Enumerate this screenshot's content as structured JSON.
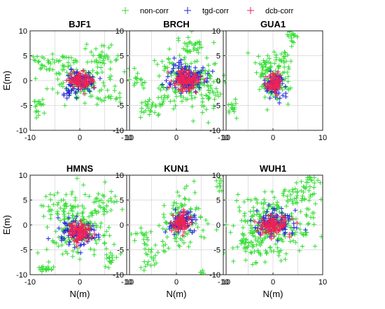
{
  "legend": [
    {
      "name": "non-corr",
      "color": "#33dd33"
    },
    {
      "name": "tgd-corr",
      "color": "#2222dd"
    },
    {
      "name": "dcb-corr",
      "color": "#ee2255"
    }
  ],
  "chart_data": [
    {
      "type": "scatter",
      "title": "BJF1",
      "xlabel": "",
      "ylabel": "E(m)",
      "xlim": [
        -10,
        10
      ],
      "ylim": [
        -10,
        10
      ],
      "xticks": [
        "-10",
        "0",
        "10"
      ],
      "yticks": [
        "-10",
        "-5",
        "0",
        "5",
        "10"
      ],
      "grid": true,
      "series": [
        {
          "name": "non-corr",
          "color": "#33dd33",
          "clusters": [
            {
              "cx": 0,
              "cy": 0,
              "sx": 2.5,
              "sy": 1.8,
              "n": 110
            },
            {
              "cx": 5,
              "cy": 4,
              "sx": 1.8,
              "sy": 1.8,
              "n": 45
            },
            {
              "cx": -8,
              "cy": 3.5,
              "sx": 1.5,
              "sy": 1.0,
              "n": 25
            },
            {
              "cx": -8.5,
              "cy": -5.5,
              "sx": 1.0,
              "sy": 1.0,
              "n": 20
            },
            {
              "cx": -3,
              "cy": 4,
              "sx": 1.5,
              "sy": 0.8,
              "n": 20
            },
            {
              "cx": 6,
              "cy": -3.5,
              "sx": 1.5,
              "sy": 0.8,
              "n": 20
            }
          ]
        },
        {
          "name": "tgd-corr",
          "color": "#2222dd",
          "clusters": [
            {
              "cx": 0,
              "cy": 0,
              "sx": 1.5,
              "sy": 1.0,
              "n": 70
            },
            {
              "cx": -2,
              "cy": -2,
              "sx": 0.8,
              "sy": 0.8,
              "n": 20
            }
          ]
        },
        {
          "name": "dcb-corr",
          "color": "#ee2255",
          "clusters": [
            {
              "cx": 0,
              "cy": 0,
              "sx": 1.2,
              "sy": 0.8,
              "n": 90
            }
          ]
        }
      ]
    },
    {
      "type": "scatter",
      "title": "BRCH",
      "xlabel": "",
      "ylabel": "",
      "xlim": [
        -10,
        10
      ],
      "ylim": [
        -10,
        10
      ],
      "xticks": [
        "-10",
        "0",
        "10"
      ],
      "yticks": [
        "-10",
        "-5",
        "0",
        "5",
        "10"
      ],
      "grid": true,
      "series": [
        {
          "name": "non-corr",
          "color": "#33dd33",
          "clusters": [
            {
              "cx": 2,
              "cy": 0.5,
              "sx": 3.0,
              "sy": 2.8,
              "n": 180
            },
            {
              "cx": -5,
              "cy": -5,
              "sx": 1.5,
              "sy": 1.2,
              "n": 30
            },
            {
              "cx": 7,
              "cy": -3,
              "sx": 1.5,
              "sy": 1.5,
              "n": 25
            },
            {
              "cx": 3,
              "cy": 7,
              "sx": 1.5,
              "sy": 1.0,
              "n": 25
            },
            {
              "cx": -8,
              "cy": 0,
              "sx": 1.2,
              "sy": 0.8,
              "n": 15
            }
          ]
        },
        {
          "name": "tgd-corr",
          "color": "#2222dd",
          "clusters": [
            {
              "cx": 2,
              "cy": 0.5,
              "sx": 1.8,
              "sy": 1.6,
              "n": 110
            }
          ]
        },
        {
          "name": "dcb-corr",
          "color": "#ee2255",
          "clusters": [
            {
              "cx": 2,
              "cy": 0,
              "sx": 1.3,
              "sy": 1.2,
              "n": 110
            }
          ]
        }
      ]
    },
    {
      "type": "scatter",
      "title": "GUA1",
      "xlabel": "",
      "ylabel": "",
      "xlim": [
        -10,
        10
      ],
      "ylim": [
        -10,
        10
      ],
      "xticks": [
        "-10",
        "0",
        "10"
      ],
      "yticks": [
        "-10",
        "-5",
        "0",
        "5",
        "10"
      ],
      "grid": true,
      "series": [
        {
          "name": "non-corr",
          "color": "#33dd33",
          "clusters": [
            {
              "cx": 0,
              "cy": 0.5,
              "sx": 1.8,
              "sy": 2.2,
              "n": 90
            },
            {
              "cx": 4,
              "cy": 9,
              "sx": 0.5,
              "sy": 0.8,
              "n": 20
            },
            {
              "cx": -8,
              "cy": -5.5,
              "sx": 0.5,
              "sy": 1.0,
              "n": 15
            },
            {
              "cx": 2,
              "cy": 4,
              "sx": 1.2,
              "sy": 1.0,
              "n": 20
            },
            {
              "cx": -2,
              "cy": 2.5,
              "sx": 1.0,
              "sy": 0.8,
              "n": 15
            }
          ]
        },
        {
          "name": "tgd-corr",
          "color": "#2222dd",
          "clusters": [
            {
              "cx": 0.5,
              "cy": -1,
              "sx": 1.0,
              "sy": 1.2,
              "n": 60
            }
          ]
        },
        {
          "name": "dcb-corr",
          "color": "#ee2255",
          "clusters": [
            {
              "cx": 0.3,
              "cy": -0.5,
              "sx": 0.8,
              "sy": 1.0,
              "n": 70
            }
          ]
        }
      ]
    },
    {
      "type": "scatter",
      "title": "HMNS",
      "xlabel": "N(m)",
      "ylabel": "E(m)",
      "xlim": [
        -10,
        10
      ],
      "ylim": [
        -10,
        10
      ],
      "xticks": [
        "-10",
        "0",
        "10"
      ],
      "yticks": [
        "-10",
        "-5",
        "0",
        "5",
        "10"
      ],
      "grid": true,
      "series": [
        {
          "name": "non-corr",
          "color": "#33dd33",
          "clusters": [
            {
              "cx": 0,
              "cy": 0,
              "sx": 3.2,
              "sy": 2.8,
              "n": 170
            },
            {
              "cx": -7,
              "cy": -9,
              "sx": 1.0,
              "sy": 0.8,
              "n": 20
            },
            {
              "cx": 6,
              "cy": -7,
              "sx": 0.8,
              "sy": 0.6,
              "n": 15
            },
            {
              "cx": -5,
              "cy": 4,
              "sx": 1.5,
              "sy": 1.2,
              "n": 30
            },
            {
              "cx": 5,
              "cy": 5,
              "sx": 1.5,
              "sy": 1.2,
              "n": 25
            }
          ]
        },
        {
          "name": "tgd-corr",
          "color": "#2222dd",
          "clusters": [
            {
              "cx": -1,
              "cy": -1.5,
              "sx": 1.8,
              "sy": 1.3,
              "n": 90
            }
          ]
        },
        {
          "name": "dcb-corr",
          "color": "#ee2255",
          "clusters": [
            {
              "cx": 0,
              "cy": -1.5,
              "sx": 1.2,
              "sy": 1.0,
              "n": 100
            }
          ]
        }
      ]
    },
    {
      "type": "scatter",
      "title": "KUN1",
      "xlabel": "N(m)",
      "ylabel": "",
      "xlim": [
        -10,
        10
      ],
      "ylim": [
        -10,
        10
      ],
      "xticks": [
        "-10",
        "0",
        "10"
      ],
      "yticks": [
        "-10",
        "-5",
        "0",
        "5",
        "10"
      ],
      "grid": true,
      "series": [
        {
          "name": "non-corr",
          "color": "#33dd33",
          "clusters": [
            {
              "cx": 1,
              "cy": 0.5,
              "sx": 2.0,
              "sy": 2.5,
              "n": 110
            },
            {
              "cx": -5,
              "cy": -6,
              "sx": 1.5,
              "sy": 1.2,
              "n": 25
            },
            {
              "cx": 9,
              "cy": 8,
              "sx": 0.4,
              "sy": 0.8,
              "n": 10
            },
            {
              "cx": 5,
              "cy": -9.5,
              "sx": 0.4,
              "sy": 0.3,
              "n": 5
            },
            {
              "cx": -7,
              "cy": -2,
              "sx": 1.0,
              "sy": 1.0,
              "n": 15
            }
          ]
        },
        {
          "name": "tgd-corr",
          "color": "#2222dd",
          "clusters": [
            {
              "cx": 1,
              "cy": 0.5,
              "sx": 1.5,
              "sy": 1.0,
              "n": 70
            }
          ]
        },
        {
          "name": "dcb-corr",
          "color": "#ee2255",
          "clusters": [
            {
              "cx": 1,
              "cy": 0.5,
              "sx": 1.0,
              "sy": 0.9,
              "n": 80
            }
          ]
        }
      ]
    },
    {
      "type": "scatter",
      "title": "WUH1",
      "xlabel": "N(m)",
      "ylabel": "",
      "xlim": [
        -10,
        10
      ],
      "ylim": [
        -10,
        10
      ],
      "xticks": [
        "-10",
        "0",
        "10"
      ],
      "yticks": [
        "-10",
        "-5",
        "0",
        "5",
        "10"
      ],
      "grid": true,
      "series": [
        {
          "name": "non-corr",
          "color": "#33dd33",
          "clusters": [
            {
              "cx": 0,
              "cy": 0,
              "sx": 4.0,
              "sy": 3.0,
              "n": 230
            },
            {
              "cx": 5,
              "cy": 6,
              "sx": 2.0,
              "sy": 1.5,
              "n": 40
            },
            {
              "cx": -5,
              "cy": -4,
              "sx": 2.0,
              "sy": 1.5,
              "n": 40
            },
            {
              "cx": 8,
              "cy": 9,
              "sx": 1.0,
              "sy": 0.6,
              "n": 15
            }
          ]
        },
        {
          "name": "tgd-corr",
          "color": "#2222dd",
          "clusters": [
            {
              "cx": 0.5,
              "cy": 0.5,
              "sx": 2.0,
              "sy": 1.5,
              "n": 100
            }
          ]
        },
        {
          "name": "dcb-corr",
          "color": "#ee2255",
          "clusters": [
            {
              "cx": 0,
              "cy": 0,
              "sx": 1.5,
              "sy": 1.0,
              "n": 110
            }
          ]
        }
      ]
    }
  ]
}
